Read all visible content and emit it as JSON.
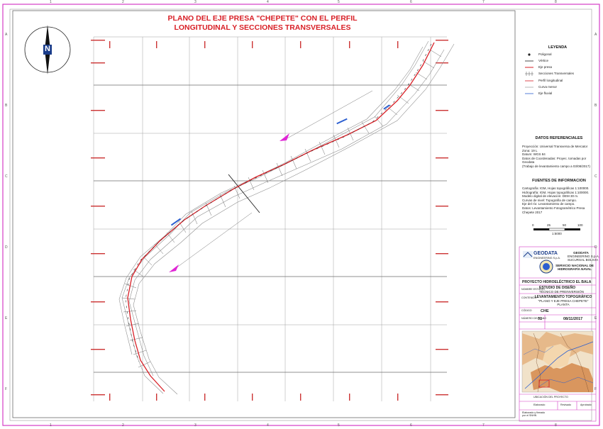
{
  "map": {
    "title_line1": "PLANO DEL EJE PRESA \"CHEPETE\" CON EL PERFIL",
    "title_line2": "LONGITUDINAL Y SECCIONES TRANSVERSALES",
    "north_label": "N"
  },
  "frame": {
    "column_labels": [
      "1",
      "2",
      "3",
      "4",
      "5",
      "6",
      "7",
      "8"
    ],
    "row_labels": [
      "A",
      "B",
      "C",
      "D",
      "E",
      "F"
    ]
  },
  "legend": {
    "title": "LEYENDA",
    "items": [
      {
        "label": "Poligonal",
        "symbol": "dot"
      },
      {
        "label": "Vértice",
        "symbol": "dash"
      },
      {
        "label": "Eje presa",
        "symbol": "red"
      },
      {
        "label": "Secciones Transversales",
        "symbol": "ticks"
      },
      {
        "label": "Perfil longitudinal",
        "symbol": "red"
      },
      {
        "label": "Curva menor",
        "symbol": "grey"
      },
      {
        "label": "Eje fluvial",
        "symbol": "blue"
      }
    ]
  },
  "datos_referenciales": {
    "title": "DATOS REFERENCIALES",
    "lines": [
      "Proyección: Universal Transversa de Mercator",
      "Zona: 19 L",
      "Datum: WGS 84",
      "Datos de Coordenadas: Proyec. tomadas por Geodata",
      "(Trabajo de levantamiento campo a 03/08/2017)"
    ]
  },
  "fuentes": {
    "title": "FUENTES DE INFORMACION",
    "lines": [
      "Cartografía: IGM, Hojas topográficas 1:100000.",
      "Hidrografía: IGM, Hojas topográficas 1:100000.",
      "Modelo digital de elevación: DEM 30 m.",
      "Curvas de nivel: Topografía de campo.",
      "Eje del río: Levantamiento de campo.",
      "Datos: Levantamiento Fotogramétrico Presa Chepete 2017"
    ]
  },
  "scale": {
    "labels": [
      "0",
      "25",
      "50",
      "100"
    ],
    "unit": "1:5000"
  },
  "title_block": {
    "company": "GEODATA",
    "company_sub": "ENGINEERING S.p.A.",
    "company_right": [
      "GEODATA",
      "ENGINEERING S.p.A.",
      "SUCURSAL BOLIVIA"
    ],
    "agency_right": [
      "SERVICIO NACIONAL DE",
      "HIDROGRAFÍA NAVAL"
    ],
    "project": "PROYECTO HIDROELÉCTRICO EL BALA",
    "study_label": "NOMBRE ESTUDIO",
    "study": [
      "ESTUDIO DE DISEÑO",
      "TÉCNICO DE PREINVERSIÓN"
    ],
    "content_label": "CONTENIDO",
    "content": [
      "LEVANTAMIENTO TOPOGRÁFICO",
      "\"PLANO Y EJE PRESA CHEPETE\"",
      "PLANTA"
    ],
    "code_label": "CÓDIGO",
    "code": "CHE",
    "sheet_label": "NÚMERO DE PLANO",
    "sheet": "01",
    "date": "08/11/2017",
    "location_label": "UBICACIÓN DEL PROYECTO",
    "bottom_cells": [
      "Elaborado",
      "Revisado",
      "Aprobado"
    ],
    "bottom_note": "Elaborado y firmado\npor el SNHN"
  },
  "colors": {
    "accent_red": "#d81f26",
    "frame_magenta": "#d63cc6",
    "river_blue": "#2c5fd0",
    "arrow_magenta": "#e026d6",
    "grid_grey": "#9a9a9a"
  }
}
